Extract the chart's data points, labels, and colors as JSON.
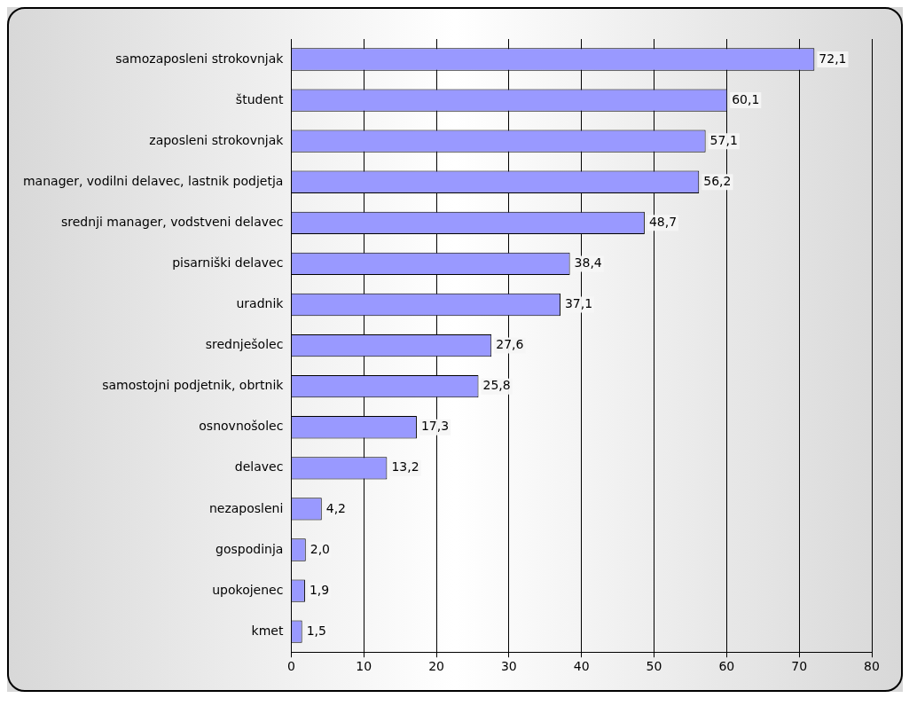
{
  "chart_data": {
    "type": "bar",
    "orientation": "horizontal",
    "categories": [
      "samozaposleni strokovnjak",
      "študent",
      "zaposleni strokovnjak",
      "manager, vodilni delavec, lastnik podjetja",
      "srednji manager, vodstveni delavec",
      "pisarniški delavec",
      "uradnik",
      "srednješolec",
      "samostojni podjetnik, obrtnik",
      "osnovnošolec",
      "delavec",
      "nezaposleni",
      "gospodinja",
      "upokojenec",
      "kmet"
    ],
    "values": [
      72.1,
      60.1,
      57.1,
      56.2,
      48.7,
      38.4,
      37.1,
      27.6,
      25.8,
      17.3,
      13.2,
      4.2,
      2.0,
      1.9,
      1.5
    ],
    "value_labels": [
      "72,1",
      "60,1",
      "57,1",
      "56,2",
      "48,7",
      "38,4",
      "37,1",
      "27,6",
      "25,8",
      "17,3",
      "13,2",
      "4,2",
      "2,0",
      "1,9",
      "1,5"
    ],
    "color": "#9999ff",
    "xlim": [
      0,
      80
    ],
    "xticks": [
      0,
      10,
      20,
      30,
      40,
      50,
      60,
      70,
      80
    ],
    "grid": "x",
    "legend": false
  }
}
